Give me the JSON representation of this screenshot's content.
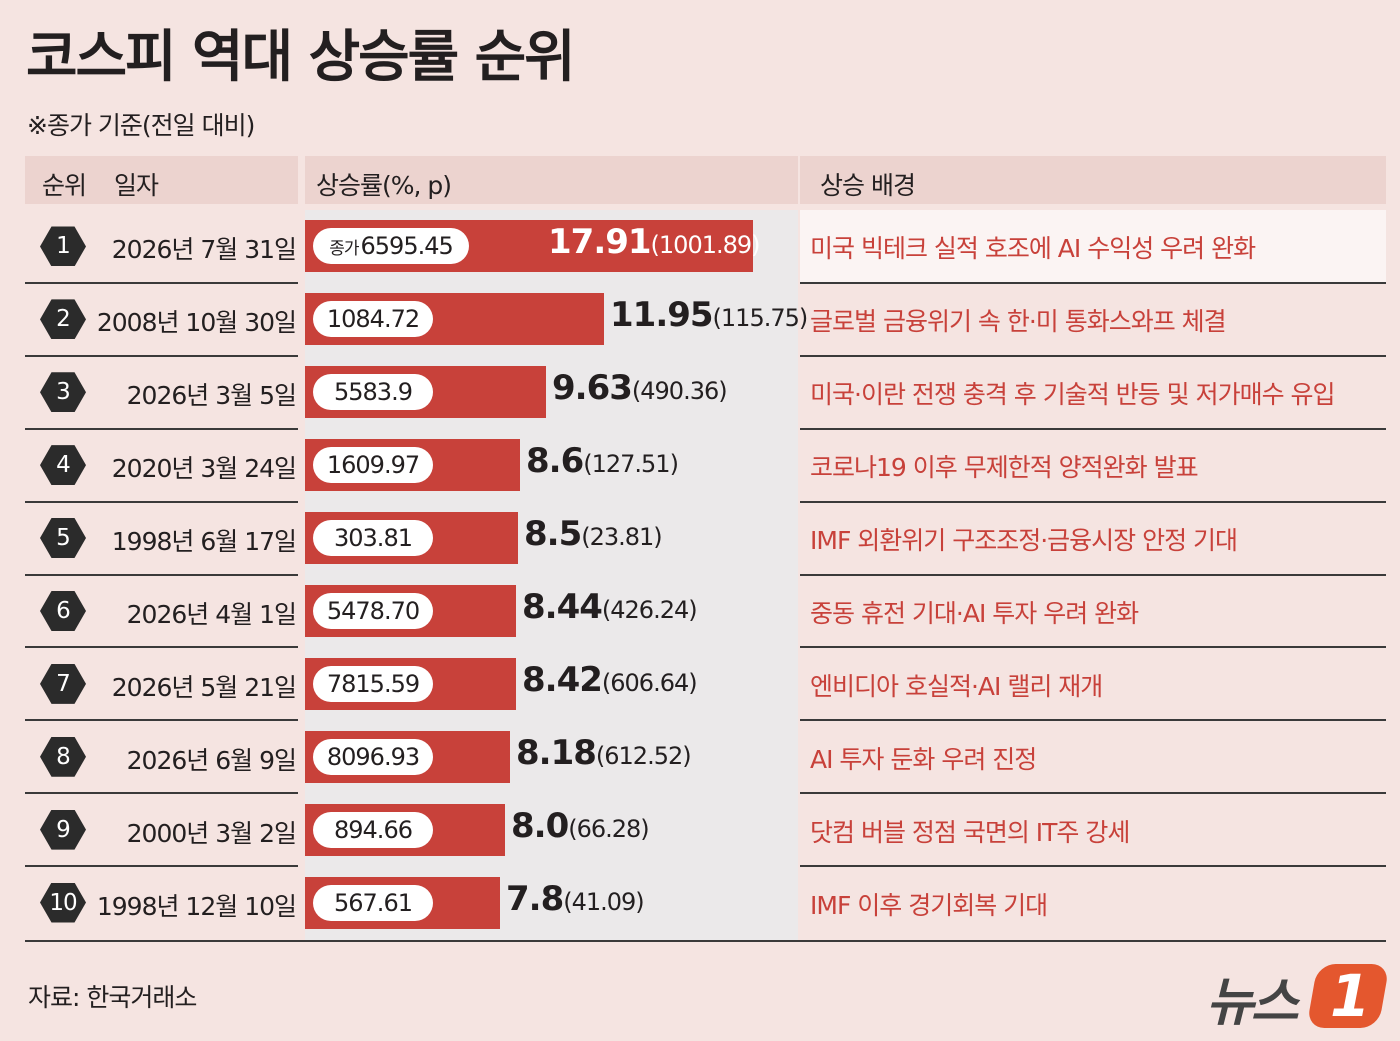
{
  "title": "코스피 역대 상승률 순위",
  "subtitle": "※종가 기준(전일 대비)",
  "headers": {
    "rank": "순위",
    "date": "일자",
    "rate": "상승률(%, p)",
    "reason": "상승 배경"
  },
  "colors": {
    "bar": "#c8413a",
    "reason_text": "#c8413a",
    "background": "#f5e4e1"
  },
  "chart_data": {
    "type": "bar",
    "orientation": "horizontal",
    "title": "코스피 역대 상승률 순위",
    "subtitle": "※종가 기준(전일 대비)",
    "value_label": "상승률(%, p)",
    "rows": [
      {
        "rank": "1",
        "date": "2026년 7월 31일",
        "close_prefix": "종가",
        "close": "6595.45",
        "rate": 17.91,
        "rate_label": "17.91",
        "points": "(1001.89)",
        "reason": "미국 빅테크 실적 호조에 AI 수익성 우려 완화"
      },
      {
        "rank": "2",
        "date": "2008년 10월 30일",
        "close": "1084.72",
        "rate": 11.95,
        "rate_label": "11.95",
        "points": "(115.75)",
        "reason": "글로벌 금융위기 속 한·미 통화스와프 체결"
      },
      {
        "rank": "3",
        "date": "2026년 3월 5일",
        "close": "5583.9",
        "rate": 9.63,
        "rate_label": "9.63",
        "points": "(490.36)",
        "reason": "미국·이란 전쟁 충격 후 기술적 반등 및 저가매수 유입"
      },
      {
        "rank": "4",
        "date": "2020년 3월 24일",
        "close": "1609.97",
        "rate": 8.6,
        "rate_label": "8.6",
        "points": "(127.51)",
        "reason": "코로나19 이후 무제한적 양적완화 발표"
      },
      {
        "rank": "5",
        "date": "1998년 6월 17일",
        "close": "303.81",
        "rate": 8.5,
        "rate_label": "8.5",
        "points": "(23.81)",
        "reason": "IMF 외환위기 구조조정·금융시장 안정 기대"
      },
      {
        "rank": "6",
        "date": "2026년 4월 1일",
        "close": "5478.70",
        "rate": 8.44,
        "rate_label": "8.44",
        "points": "(426.24)",
        "reason": "중동 휴전 기대·AI 투자 우려 완화"
      },
      {
        "rank": "7",
        "date": "2026년 5월 21일",
        "close": "7815.59",
        "rate": 8.42,
        "rate_label": "8.42",
        "points": "(606.64)",
        "reason": "엔비디아 호실적·AI 랠리 재개"
      },
      {
        "rank": "8",
        "date": "2026년 6월 9일",
        "close": "8096.93",
        "rate": 8.18,
        "rate_label": "8.18",
        "points": "(612.52)",
        "reason": "AI 투자 둔화 우려 진정"
      },
      {
        "rank": "9",
        "date": "2000년 3월 2일",
        "close": "894.66",
        "rate": 8.0,
        "rate_label": "8.0",
        "points": "(66.28)",
        "reason": "닷컴 버블 정점 국면의 IT주 강세"
      },
      {
        "rank": "10",
        "date": "1998년 12월 10일",
        "close": "567.61",
        "rate": 7.8,
        "rate_label": "7.8",
        "points": "(41.09)",
        "reason": "IMF 이후 경기회복 기대"
      }
    ]
  },
  "source": "자료: 한국거래소",
  "logo": {
    "text": "뉴스",
    "badge": "1"
  }
}
